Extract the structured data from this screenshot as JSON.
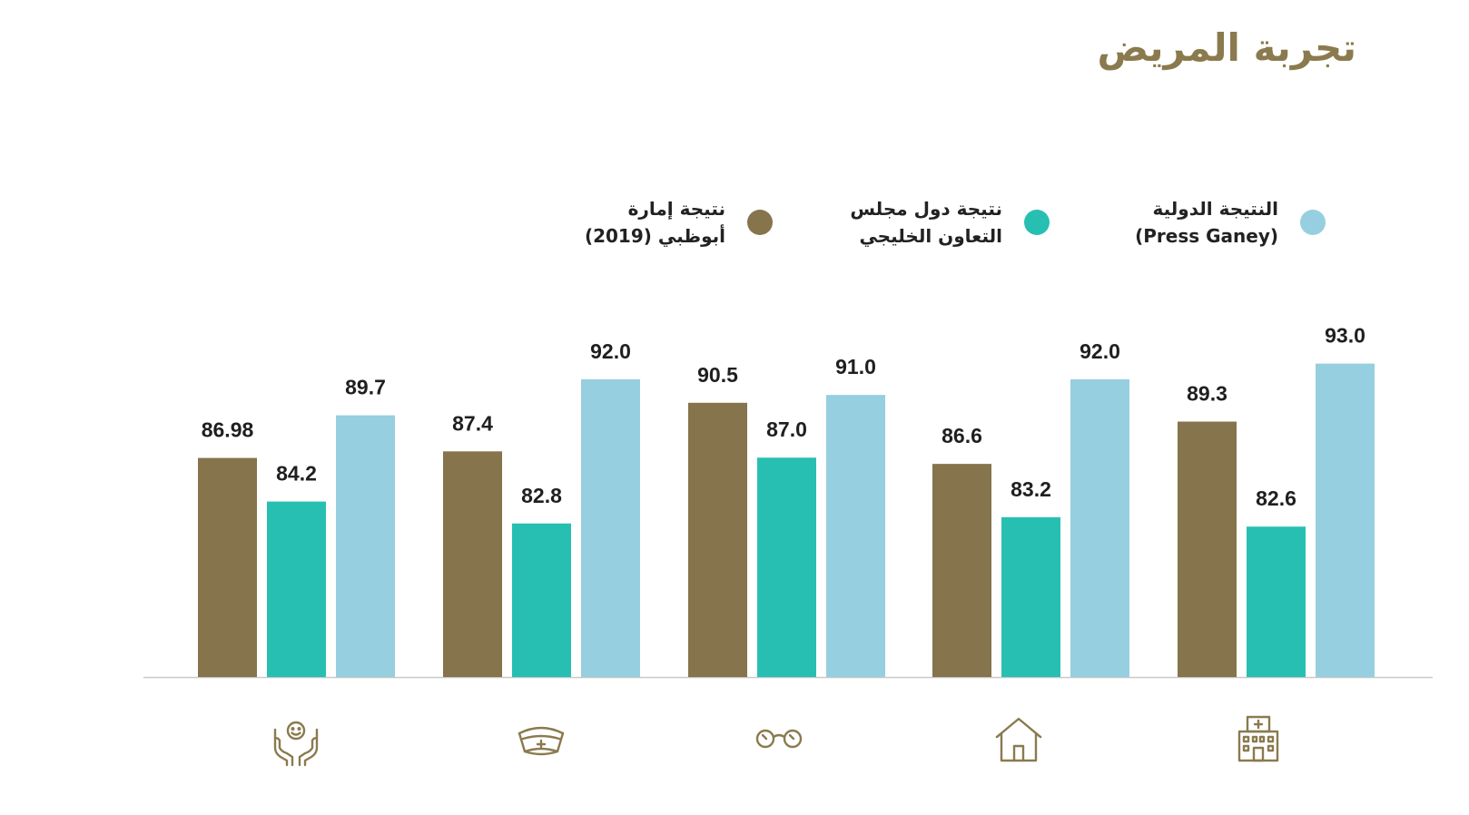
{
  "title": "تجربة المريض",
  "legend": [
    {
      "line1": "النتيجة الدولية",
      "line2": "(Press Ganey)",
      "color": "#96cfdf"
    },
    {
      "line1": "نتيجة دول مجلس",
      "line2": "التعاون الخليجي",
      "color": "#28bfb3"
    },
    {
      "line1": "نتيجة إمارة",
      "line2": "أبوظبي  (2019)",
      "color": "#85744c"
    }
  ],
  "chart_data": {
    "type": "bar",
    "categories": [
      "hands-smile-icon",
      "nurse-cap-icon",
      "glasses-icon",
      "home-icon",
      "hospital-icon"
    ],
    "series": [
      {
        "name": "نتيجة إمارة أبوظبي  (2019)",
        "color": "#85744c",
        "values": [
          86.98,
          87.4,
          90.5,
          86.6,
          89.3
        ],
        "labels": [
          "86.98",
          "87.4",
          "90.5",
          "86.6",
          "89.3"
        ]
      },
      {
        "name": "نتيجة دول مجلس التعاون الخليجي",
        "color": "#28bfb3",
        "values": [
          84.2,
          82.8,
          87.0,
          83.2,
          82.6
        ],
        "labels": [
          "84.2",
          "82.8",
          "87.0",
          "83.2",
          "82.6"
        ]
      },
      {
        "name": "النتيجة الدولية (Press Ganey)",
        "color": "#96cfdf",
        "values": [
          89.7,
          92.0,
          91.0,
          92.0,
          93.0
        ],
        "labels": [
          "89.7",
          "92.0",
          "91.0",
          "92.0",
          "93.0"
        ]
      }
    ],
    "ylim": [
      73,
      93.5
    ],
    "grid": false,
    "legend_position": "top"
  },
  "icon_color": "#8a7a4e"
}
